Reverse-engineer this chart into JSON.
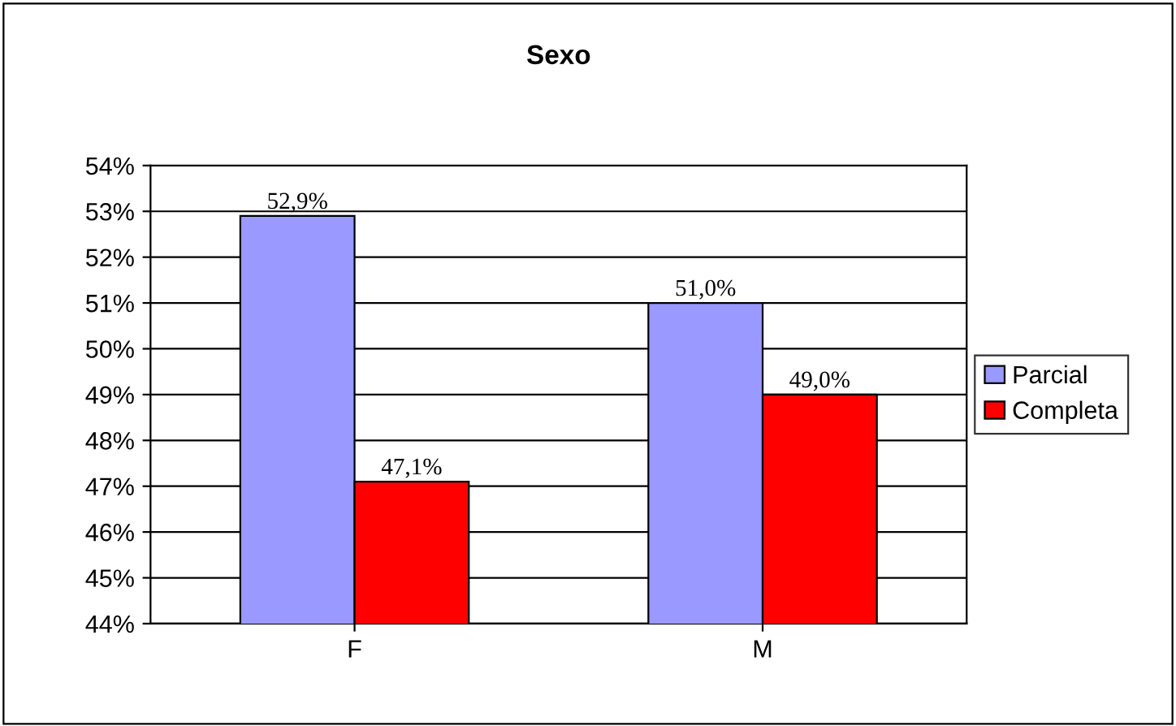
{
  "chart_data": {
    "type": "bar",
    "title": "Sexo",
    "categories": [
      "F",
      "M"
    ],
    "series": [
      {
        "name": "Parcial",
        "color": "#9999ff",
        "values": [
          52.9,
          51.0
        ],
        "value_labels": [
          "52,9%",
          "51,0%"
        ]
      },
      {
        "name": "Completa",
        "color": "#ff0000",
        "values": [
          47.1,
          49.0
        ],
        "value_labels": [
          "47,1%",
          "49,0%"
        ]
      }
    ],
    "ylim": [
      44,
      54
    ],
    "yticks": [
      {
        "value": 44,
        "label": "44%"
      },
      {
        "value": 45,
        "label": "45%"
      },
      {
        "value": 46,
        "label": "46%"
      },
      {
        "value": 47,
        "label": "47%"
      },
      {
        "value": 48,
        "label": "48%"
      },
      {
        "value": 49,
        "label": "49%"
      },
      {
        "value": 50,
        "label": "50%"
      },
      {
        "value": 51,
        "label": "51%"
      },
      {
        "value": 52,
        "label": "52%"
      },
      {
        "value": 53,
        "label": "53%"
      },
      {
        "value": 54,
        "label": "54%"
      }
    ],
    "grid": "y",
    "legend": "right"
  }
}
